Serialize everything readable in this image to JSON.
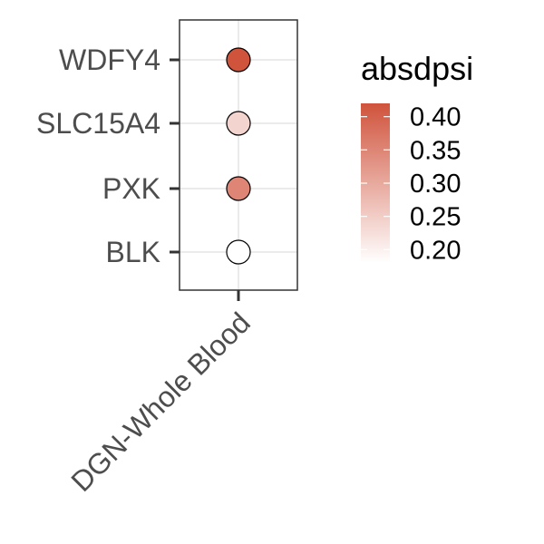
{
  "chart_data": {
    "type": "scatter",
    "x_categories": [
      "DGN-Whole Blood"
    ],
    "y_categories": [
      "WDFY4",
      "SLC15A4",
      "PXK",
      "BLK"
    ],
    "points": [
      {
        "x": "DGN-Whole Blood",
        "y": "WDFY4",
        "absdpsi": 0.42
      },
      {
        "x": "DGN-Whole Blood",
        "y": "SLC15A4",
        "absdpsi": 0.24
      },
      {
        "x": "DGN-Whole Blood",
        "y": "PXK",
        "absdpsi": 0.35
      },
      {
        "x": "DGN-Whole Blood",
        "y": "BLK",
        "absdpsi": 0.18
      }
    ],
    "color_scale": {
      "title": "absdpsi",
      "low_color": "#ffffff",
      "high_color": "#d0533c",
      "range": [
        0.18,
        0.42
      ],
      "ticks": [
        "0.40",
        "0.35",
        "0.30",
        "0.25",
        "0.20"
      ]
    },
    "xlabel": "",
    "ylabel": "",
    "grid": true,
    "legend_position": "right"
  }
}
